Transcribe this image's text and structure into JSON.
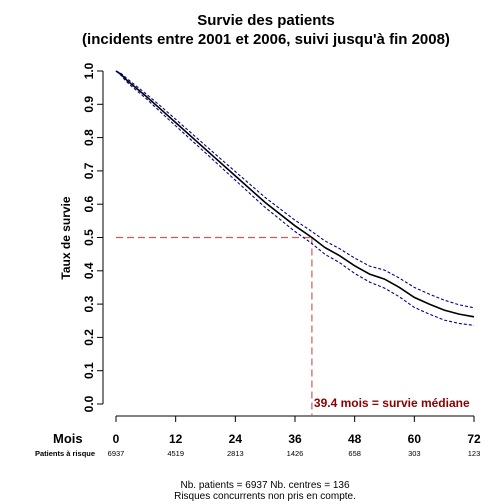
{
  "chart_data": {
    "type": "line",
    "title": "Survie des patients",
    "subtitle": "(incidents entre 2001 et 2006, suivi jusqu'à fin 2008)",
    "ylabel": "Taux de survie",
    "xlabel": "Mois",
    "xlim": [
      0,
      72
    ],
    "ylim": [
      0,
      1
    ],
    "x_ticks": [
      0,
      12,
      24,
      36,
      48,
      60,
      72
    ],
    "y_ticks": [
      "0.0",
      "0.1",
      "0.2",
      "0.3",
      "0.4",
      "0.5",
      "0.6",
      "0.7",
      "0.8",
      "0.9",
      "1.0"
    ],
    "series": [
      {
        "role": "estimate",
        "color": "#000000",
        "style": "solid",
        "x": [
          0,
          1,
          2,
          3,
          6,
          9,
          12,
          18,
          24,
          30,
          36,
          39.4,
          42,
          45,
          48,
          51,
          54,
          57,
          60,
          63,
          66,
          69,
          72
        ],
        "y": [
          1.0,
          0.99,
          0.975,
          0.962,
          0.925,
          0.885,
          0.845,
          0.765,
          0.685,
          0.605,
          0.535,
          0.5,
          0.47,
          0.445,
          0.415,
          0.39,
          0.375,
          0.35,
          0.32,
          0.3,
          0.282,
          0.27,
          0.262
        ]
      },
      {
        "role": "upper-ci",
        "color": "#00008b",
        "style": "dotted",
        "x": [
          0,
          1,
          2,
          3,
          6,
          9,
          12,
          18,
          24,
          30,
          36,
          39.4,
          42,
          45,
          48,
          51,
          54,
          57,
          60,
          63,
          66,
          69,
          72
        ],
        "y": [
          1.0,
          0.993,
          0.98,
          0.968,
          0.932,
          0.894,
          0.855,
          0.776,
          0.698,
          0.62,
          0.552,
          0.518,
          0.49,
          0.466,
          0.438,
          0.414,
          0.402,
          0.378,
          0.35,
          0.33,
          0.312,
          0.298,
          0.289
        ]
      },
      {
        "role": "lower-ci",
        "color": "#00008b",
        "style": "dotted",
        "x": [
          0,
          1,
          2,
          3,
          6,
          9,
          12,
          18,
          24,
          30,
          36,
          39.4,
          42,
          45,
          48,
          51,
          54,
          57,
          60,
          63,
          66,
          69,
          72
        ],
        "y": [
          1.0,
          0.987,
          0.97,
          0.956,
          0.918,
          0.876,
          0.835,
          0.754,
          0.672,
          0.59,
          0.518,
          0.482,
          0.45,
          0.424,
          0.392,
          0.366,
          0.348,
          0.322,
          0.29,
          0.27,
          0.252,
          0.242,
          0.236
        ]
      }
    ],
    "median": {
      "x": 39.4,
      "y": 0.5,
      "color": "#cd5c5c",
      "label": "39.4 mois = survie médiane",
      "label_color": "#8b0000"
    },
    "at_risk": {
      "label": "Patients à risque",
      "x": [
        0,
        12,
        24,
        36,
        48,
        60,
        72
      ],
      "values": [
        "6937",
        "4519",
        "2813",
        "1426",
        "658",
        "303",
        "123"
      ]
    },
    "footer": {
      "line1": "Nb. patients = 6937     Nb. centres = 136",
      "line2": "Risques concurrents non pris en compte."
    },
    "grid": false
  }
}
